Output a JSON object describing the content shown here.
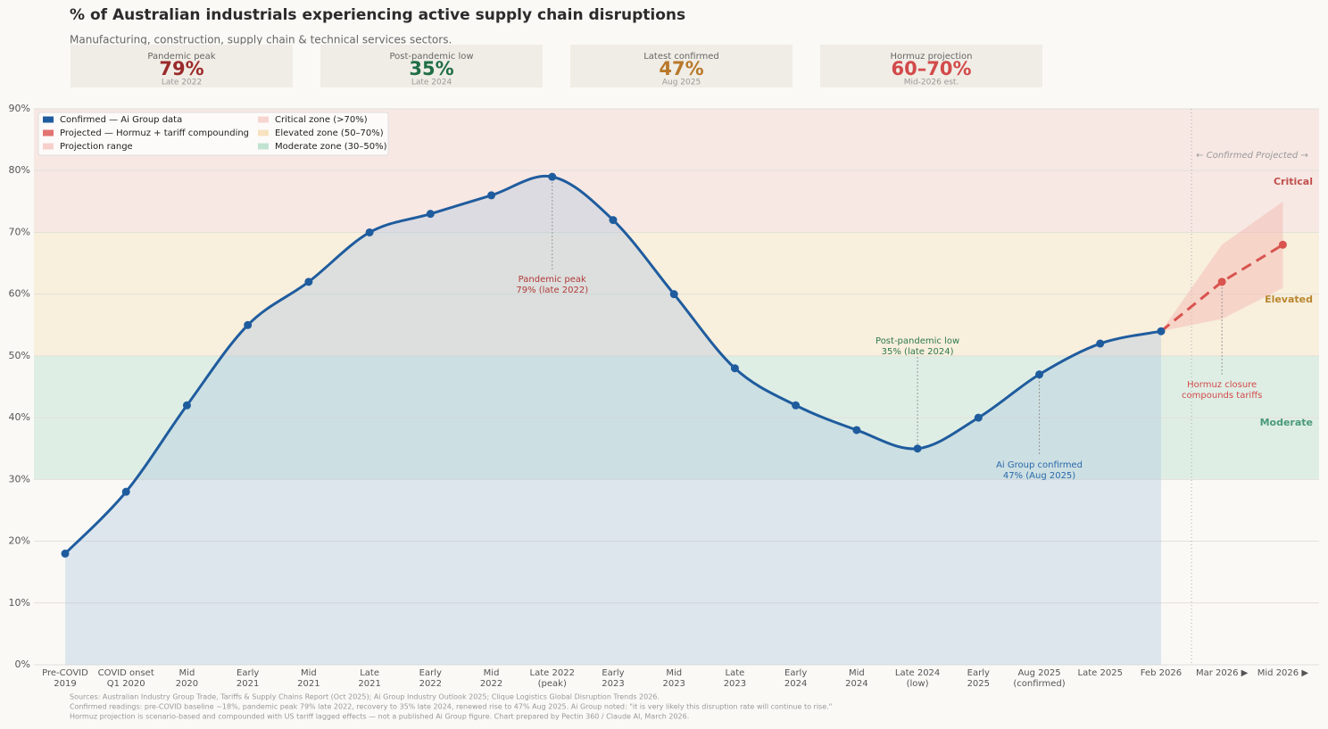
{
  "chart_data": {
    "type": "line",
    "title": "% of Australian industrials experiencing active supply chain disruptions",
    "subtitle": "Manufacturing, construction, supply chain & technical services sectors.",
    "cards": [
      {
        "label": "Pandemic peak",
        "value": "79%",
        "sub": "Late 2022",
        "color": "#9b2a2a"
      },
      {
        "label": "Post-pandemic low",
        "value": "35%",
        "sub": "Late 2024",
        "color": "#1f6e45"
      },
      {
        "label": "Latest confirmed",
        "value": "47%",
        "sub": "Aug 2025",
        "color": "#b8782a"
      },
      {
        "label": "Hormuz projection",
        "value": "60–70%",
        "sub": "Mid-2026 est.",
        "color": "#d24a4a"
      }
    ],
    "categories": [
      "Pre-COVID\n2019",
      "COVID onset\nQ1 2020",
      "Mid\n2020",
      "Early\n2021",
      "Mid\n2021",
      "Late\n2021",
      "Early\n2022",
      "Mid\n2022",
      "Late 2022\n(peak)",
      "Early\n2023",
      "Mid\n2023",
      "Late\n2023",
      "Early\n2024",
      "Mid\n2024",
      "Late 2024\n(low)",
      "Early\n2025",
      "Aug 2025\n(confirmed)",
      "Late 2025",
      "Feb 2026",
      "Mar 2026 ▶",
      "Mid 2026 ▶"
    ],
    "series": [
      {
        "name": "Confirmed — Ai Group data",
        "color": "#1f5c9e",
        "values": [
          18,
          28,
          42,
          55,
          62,
          70,
          73,
          76,
          79,
          72,
          60,
          48,
          42,
          38,
          35,
          40,
          47,
          52,
          54,
          null,
          null
        ]
      },
      {
        "name": "Projected — Hormuz + tariff compounding",
        "color": "#d9534f",
        "values": [
          null,
          null,
          null,
          null,
          null,
          null,
          null,
          null,
          null,
          null,
          null,
          null,
          null,
          null,
          null,
          null,
          null,
          null,
          54,
          62,
          68
        ]
      }
    ],
    "range": {
      "name": "Projection range",
      "color": "#f4bdb6",
      "low": [
        null,
        null,
        null,
        null,
        null,
        null,
        null,
        null,
        null,
        null,
        null,
        null,
        null,
        null,
        null,
        null,
        null,
        null,
        54,
        56,
        61
      ],
      "high": [
        null,
        null,
        null,
        null,
        null,
        null,
        null,
        null,
        null,
        null,
        null,
        null,
        null,
        null,
        null,
        null,
        null,
        null,
        54,
        68,
        75
      ]
    },
    "zones": [
      {
        "name": "Critical zone (>70%)",
        "label": "Critical",
        "from": 70,
        "to": 90,
        "color": "#f2c4bd",
        "text_color": "#c0504d"
      },
      {
        "name": "Elevated zone (50–70%)",
        "label": "Elevated",
        "from": 50,
        "to": 70,
        "color": "#f5d9a8",
        "text_color": "#b8862e"
      },
      {
        "name": "Moderate zone (30–50%)",
        "label": "Moderate",
        "from": 30,
        "to": 50,
        "color": "#a8d8c0",
        "text_color": "#4a9a7a"
      }
    ],
    "ylim": [
      0,
      90
    ],
    "yticks": [
      {
        "value": 0,
        "label": "0%"
      },
      {
        "value": 10,
        "label": "10%"
      },
      {
        "value": 20,
        "label": "20%"
      },
      {
        "value": 30,
        "label": "30%"
      },
      {
        "value": 40,
        "label": "40%"
      },
      {
        "value": 50,
        "label": "50%"
      },
      {
        "value": 60,
        "label": "60%"
      },
      {
        "value": 70,
        "label": "70%"
      },
      {
        "value": 80,
        "label": "80%"
      },
      {
        "value": 90,
        "label": "90%"
      }
    ],
    "grid": true,
    "legend": "upper left",
    "divider_label": "← Confirmed   Projected →",
    "annotations": [
      {
        "text": "Pandemic peak\n79% (late 2022)",
        "color": "#b03a3a"
      },
      {
        "text": "Post-pandemic low\n35% (late 2024)",
        "color": "#2e7a4a"
      },
      {
        "text": "Ai Group confirmed\n47% (Aug 2025)",
        "color": "#2a68aa"
      },
      {
        "text": "Hormuz closure\ncompounds tariffs",
        "color": "#d24a4a"
      }
    ],
    "footnote": [
      "Sources: Australian Industry Group Trade, Tariffs & Supply Chains Report (Oct 2025); Ai Group Industry Outlook 2025; Clique Logistics Global Disruption Trends 2026.",
      "Confirmed readings: pre-COVID baseline ~18%, pandemic peak 79% late 2022, recovery to 35% late 2024, renewed rise to 47% Aug 2025. Ai Group noted: \"it is very likely this disruption rate will continue to rise.\"",
      "Hormuz projection is scenario-based and compounded with US tariff lagged effects — not a published Ai Group figure. Chart prepared by Pectin 360 / Claude AI, March 2026."
    ]
  }
}
